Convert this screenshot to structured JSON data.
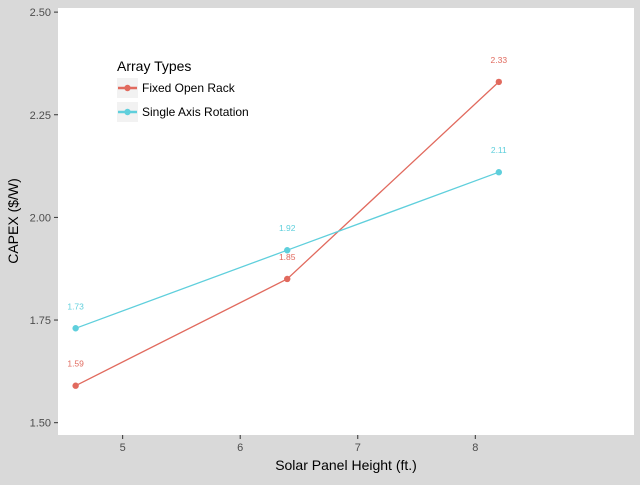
{
  "chart_data": {
    "type": "line",
    "title": "",
    "xlabel": "Solar Panel Height (ft.)",
    "ylabel": "CAPEX ($/W)",
    "xlim": [
      4.45,
      9.35
    ],
    "ylim": [
      1.47,
      2.51
    ],
    "xticks": [
      5,
      6,
      7,
      8
    ],
    "yticks": [
      1.5,
      1.75,
      2.0,
      2.25,
      2.5
    ],
    "xtick_labels": [
      "5",
      "6",
      "7",
      "8"
    ],
    "ytick_labels": [
      "1.50",
      "1.75",
      "2.00",
      "2.25",
      "2.50"
    ],
    "grid": false,
    "legend": {
      "title": "Array Types",
      "placement": "top-left"
    },
    "series": [
      {
        "name": "Fixed Open Rack",
        "color": "#e16a5e",
        "x": [
          4.6,
          6.4,
          8.2
        ],
        "y": [
          1.59,
          1.85,
          2.33
        ],
        "labels": [
          "1.59",
          "1.85",
          "2.33"
        ]
      },
      {
        "name": "Single Axis Rotation",
        "color": "#5fcfdc",
        "x": [
          4.6,
          6.4,
          8.2
        ],
        "y": [
          1.73,
          1.92,
          2.11
        ],
        "labels": [
          "1.73",
          "1.92",
          "2.11"
        ]
      }
    ]
  }
}
